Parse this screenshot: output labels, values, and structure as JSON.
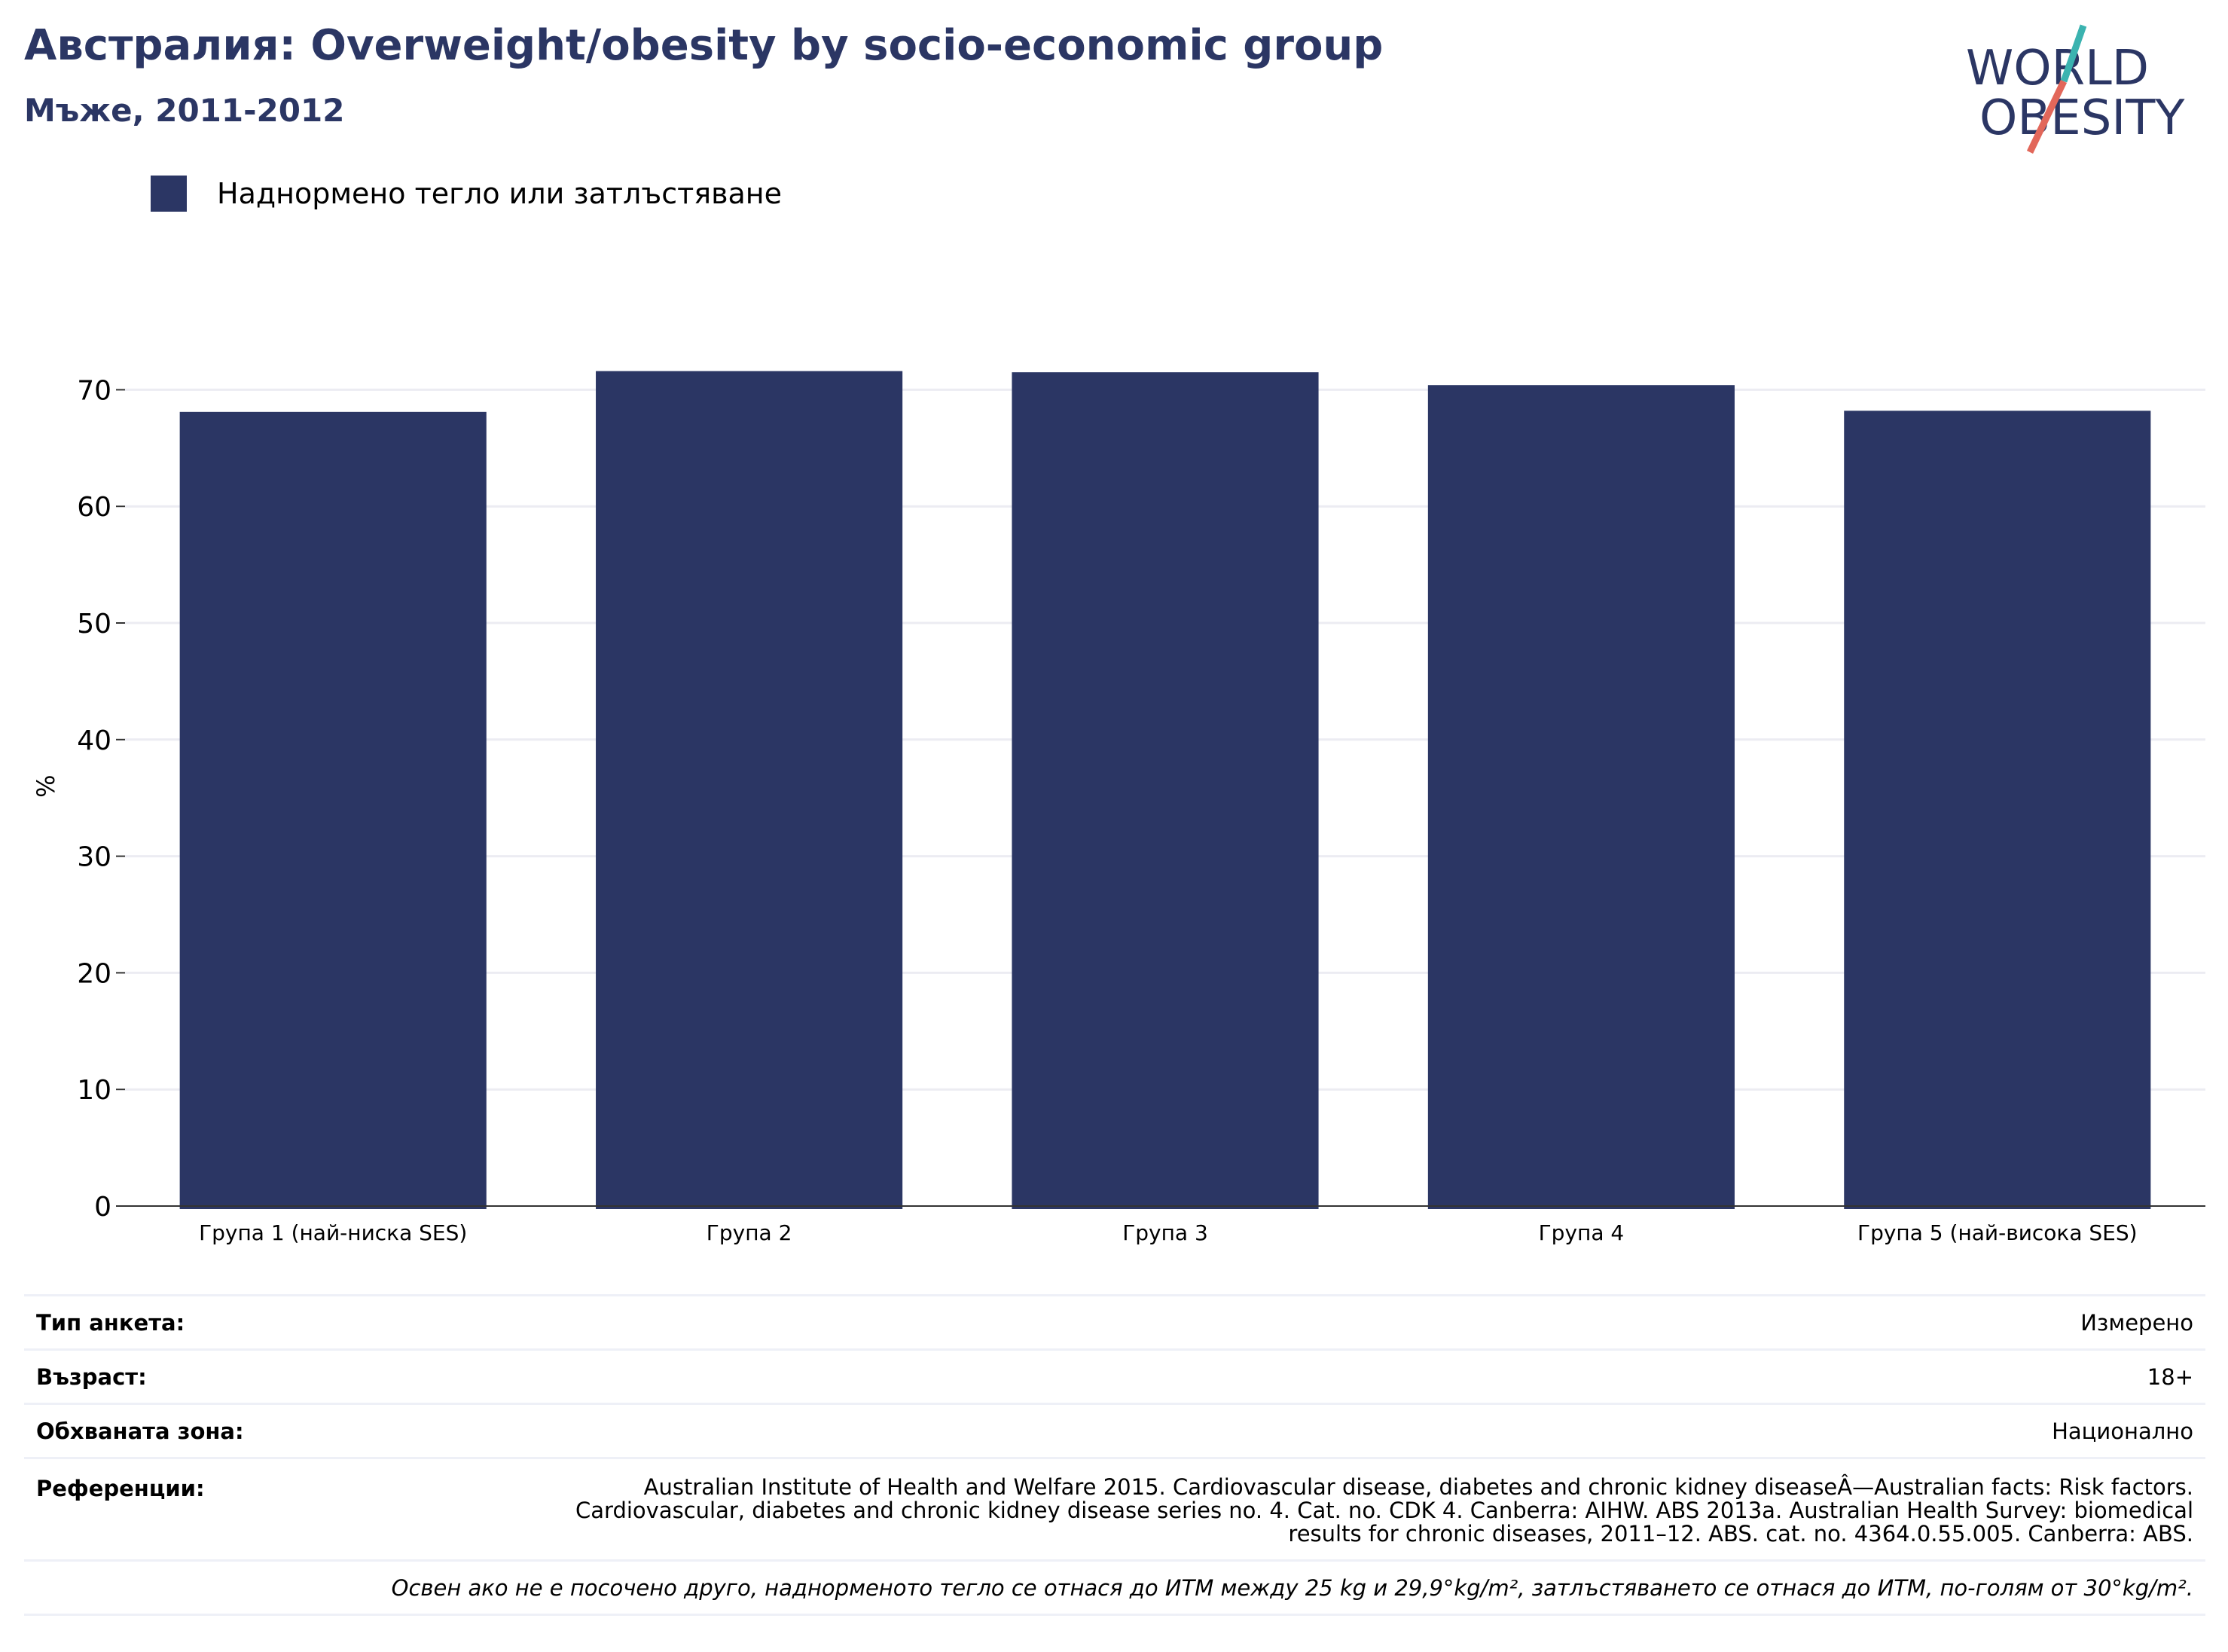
{
  "header": {
    "title": "Австралия: Overweight/obesity by socio-economic group",
    "subtitle": "Мъже, 2011-2012"
  },
  "logo": {
    "line1": "WORLD",
    "line2": "OBESITY",
    "accent_colors": [
      "#e2675a",
      "#3bb3b0"
    ]
  },
  "legend": {
    "label": "Наднормено тегло или затлъстяване",
    "color": "#2b3664"
  },
  "chart_data": {
    "type": "bar",
    "categories": [
      "Група 1 (най-ниска SES)",
      "Група 2",
      "Група 3",
      "Група 4",
      "Група 5 (най-висока SES)"
    ],
    "series": [
      {
        "name": "Наднормено тегло или затлъстяване",
        "values": [
          68.1,
          71.6,
          71.5,
          70.4,
          68.2
        ],
        "color": "#2b3664"
      }
    ],
    "ylabel": "%",
    "yticks": [
      0,
      10,
      20,
      30,
      40,
      50,
      60,
      70
    ],
    "ylim": [
      0,
      72
    ],
    "grid": true,
    "legend_position": "top-left"
  },
  "info": {
    "rows": [
      {
        "key": "Тип анкета:",
        "value": "Измерено"
      },
      {
        "key": "Възраст:",
        "value": "18+"
      },
      {
        "key": "Обхваната зона:",
        "value": "Национално"
      }
    ],
    "references": {
      "key": "Референции:",
      "value": "Australian Institute of Health and Welfare 2015. Cardiovascular disease, diabetes and chronic kidney diseaseÂ—Australian facts: Risk factors. Cardiovascular, diabetes and chronic kidney disease series no. 4. Cat. no. CDK 4. Canberra: AIHW. ABS 2013a. Australian Health Survey: biomedical results for chronic diseases, 2011–12. ABS. cat. no. 4364.0.55.005. Canberra: ABS."
    },
    "note": "Освен ако не е посочено друго, наднорменото тегло се отнася до ИТМ между 25 kg и 29,9°kg/m², затлъстяването се отнася до ИТМ, по-голям от 30°kg/m²."
  }
}
